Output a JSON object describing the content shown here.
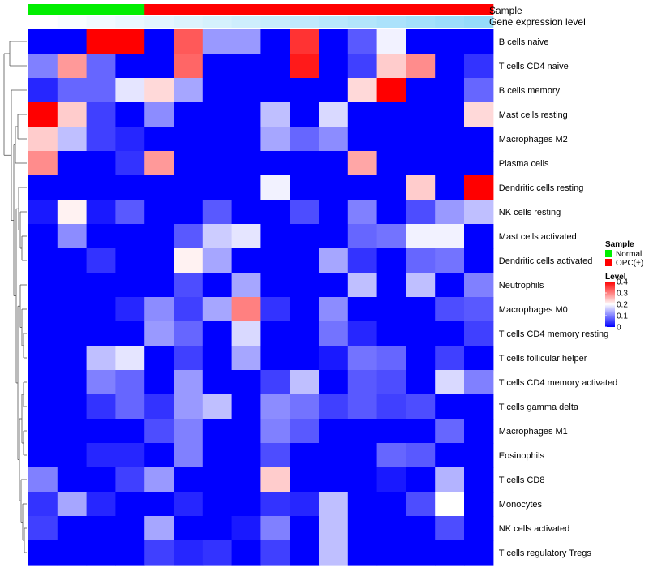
{
  "chart_data": {
    "type": "heatmap",
    "annotation_titles": [
      "Sample",
      "Gene expression level"
    ],
    "sample_groups": [
      "Normal",
      "Normal",
      "Normal",
      "Normal",
      "OPC(+)",
      "OPC(+)",
      "OPC(+)",
      "OPC(+)",
      "OPC(+)",
      "OPC(+)",
      "OPC(+)",
      "OPC(+)",
      "OPC(+)",
      "OPC(+)",
      "OPC(+)",
      "OPC(+)"
    ],
    "expression_levels": [
      0.0,
      0.04,
      0.08,
      0.12,
      0.16,
      0.2,
      0.24,
      0.28,
      0.32,
      0.36,
      0.4,
      0.44,
      0.48,
      0.52,
      0.56,
      0.6
    ],
    "rows": [
      "B cells naive",
      "T cells CD4 naive",
      "B cells memory",
      "Mast cells resting",
      "Macrophages M2",
      "Plasma cells",
      "Dendritic cells resting",
      "NK cells resting",
      "Mast cells activated",
      "Dendritic cells activated",
      "Neutrophils",
      "Macrophages M0",
      "T cells CD4 memory resting",
      "T cells follicular helper",
      "T cells CD4 memory activated",
      "T cells gamma delta",
      "Macrophages M1",
      "Eosinophils",
      "T cells CD8",
      "Monocytes",
      "NK cells activated",
      "T cells regulatory  Tregs"
    ],
    "values": [
      [
        0.0,
        0.0,
        0.4,
        0.4,
        0.0,
        0.33,
        0.12,
        0.12,
        0.0,
        0.36,
        0.0,
        0.07,
        0.19,
        0.0,
        0.0,
        0.0
      ],
      [
        0.1,
        0.28,
        0.08,
        0.0,
        0.0,
        0.32,
        0.0,
        0.0,
        0.0,
        0.38,
        0.0,
        0.05,
        0.24,
        0.29,
        0.0,
        0.04
      ],
      [
        0.03,
        0.08,
        0.08,
        0.18,
        0.23,
        0.13,
        0.0,
        0.0,
        0.0,
        0.0,
        0.0,
        0.23,
        0.4,
        0.0,
        0.0,
        0.08
      ],
      [
        0.4,
        0.24,
        0.05,
        0.0,
        0.11,
        0.0,
        0.0,
        0.0,
        0.15,
        0.0,
        0.17,
        0.0,
        0.0,
        0.0,
        0.0,
        0.23
      ],
      [
        0.24,
        0.15,
        0.05,
        0.03,
        0.0,
        0.0,
        0.0,
        0.0,
        0.13,
        0.08,
        0.11,
        0.0,
        0.0,
        0.0,
        0.0,
        0.0
      ],
      [
        0.29,
        0.0,
        0.0,
        0.04,
        0.28,
        0.0,
        0.0,
        0.0,
        0.0,
        0.0,
        0.0,
        0.27,
        0.0,
        0.0,
        0.0,
        0.0
      ],
      [
        0.0,
        0.0,
        0.0,
        0.0,
        0.0,
        0.0,
        0.0,
        0.0,
        0.19,
        0.0,
        0.0,
        0.0,
        0.0,
        0.24,
        0.0,
        0.4
      ],
      [
        0.02,
        0.21,
        0.02,
        0.07,
        0.0,
        0.0,
        0.07,
        0.0,
        0.0,
        0.06,
        0.0,
        0.1,
        0.0,
        0.06,
        0.12,
        0.15
      ],
      [
        0.0,
        0.11,
        0.0,
        0.0,
        0.0,
        0.07,
        0.16,
        0.18,
        0.0,
        0.0,
        0.0,
        0.08,
        0.09,
        0.19,
        0.19,
        0.0
      ],
      [
        0.0,
        0.0,
        0.04,
        0.0,
        0.0,
        0.21,
        0.13,
        0.0,
        0.0,
        0.0,
        0.13,
        0.04,
        0.0,
        0.08,
        0.09,
        0.0
      ],
      [
        0.0,
        0.0,
        0.0,
        0.0,
        0.0,
        0.06,
        0.0,
        0.13,
        0.0,
        0.0,
        0.0,
        0.15,
        0.0,
        0.15,
        0.0,
        0.1
      ],
      [
        0.0,
        0.0,
        0.0,
        0.03,
        0.11,
        0.05,
        0.13,
        0.3,
        0.04,
        0.0,
        0.11,
        0.0,
        0.0,
        0.0,
        0.06,
        0.07
      ],
      [
        0.0,
        0.0,
        0.0,
        0.0,
        0.12,
        0.08,
        0.0,
        0.17,
        0.0,
        0.0,
        0.09,
        0.03,
        0.0,
        0.0,
        0.0,
        0.05
      ],
      [
        0.0,
        0.0,
        0.15,
        0.18,
        0.0,
        0.05,
        0.0,
        0.13,
        0.0,
        0.0,
        0.02,
        0.09,
        0.08,
        0.0,
        0.05,
        0.0
      ],
      [
        0.0,
        0.0,
        0.1,
        0.08,
        0.0,
        0.12,
        0.0,
        0.0,
        0.05,
        0.15,
        0.0,
        0.07,
        0.06,
        0.0,
        0.17,
        0.1
      ],
      [
        0.0,
        0.0,
        0.04,
        0.08,
        0.04,
        0.12,
        0.15,
        0.0,
        0.11,
        0.09,
        0.05,
        0.07,
        0.05,
        0.06,
        0.0,
        0.0
      ],
      [
        0.0,
        0.0,
        0.0,
        0.0,
        0.06,
        0.1,
        0.0,
        0.0,
        0.1,
        0.07,
        0.0,
        0.0,
        0.0,
        0.0,
        0.08,
        0.0
      ],
      [
        0.0,
        0.0,
        0.03,
        0.03,
        0.0,
        0.1,
        0.0,
        0.0,
        0.06,
        0.0,
        0.0,
        0.0,
        0.08,
        0.07,
        0.0,
        0.0
      ],
      [
        0.1,
        0.0,
        0.0,
        0.05,
        0.12,
        0.0,
        0.0,
        0.0,
        0.24,
        0.0,
        0.0,
        0.0,
        0.02,
        0.0,
        0.14,
        0.0
      ],
      [
        0.04,
        0.13,
        0.03,
        0.0,
        0.0,
        0.03,
        0.0,
        0.0,
        0.04,
        0.03,
        0.15,
        0.0,
        0.0,
        0.06,
        0.2,
        0.0
      ],
      [
        0.05,
        0.0,
        0.0,
        0.0,
        0.13,
        0.0,
        0.0,
        0.02,
        0.1,
        0.0,
        0.15,
        0.0,
        0.0,
        0.0,
        0.06,
        0.0
      ],
      [
        0.0,
        0.0,
        0.0,
        0.0,
        0.05,
        0.03,
        0.04,
        0.0,
        0.05,
        0.0,
        0.15,
        0.0,
        0.0,
        0.0,
        0.0,
        0.0
      ]
    ],
    "legend": {
      "sample_title": "Sample",
      "sample_items": [
        {
          "label": "Normal",
          "color": "#00ee00"
        },
        {
          "label": "OPC(+)",
          "color": "#ff0000"
        }
      ],
      "level_title": "Level",
      "level_ticks": [
        "0.4",
        "0.3",
        "0.2",
        "0.1",
        "0"
      ],
      "level_range": [
        0,
        0.4
      ]
    },
    "colors": {
      "low": "#0000ff",
      "mid": "#ffffff",
      "high": "#ff0000",
      "expr_low": "#ffffff",
      "expr_high": "#4fc3f7"
    }
  }
}
